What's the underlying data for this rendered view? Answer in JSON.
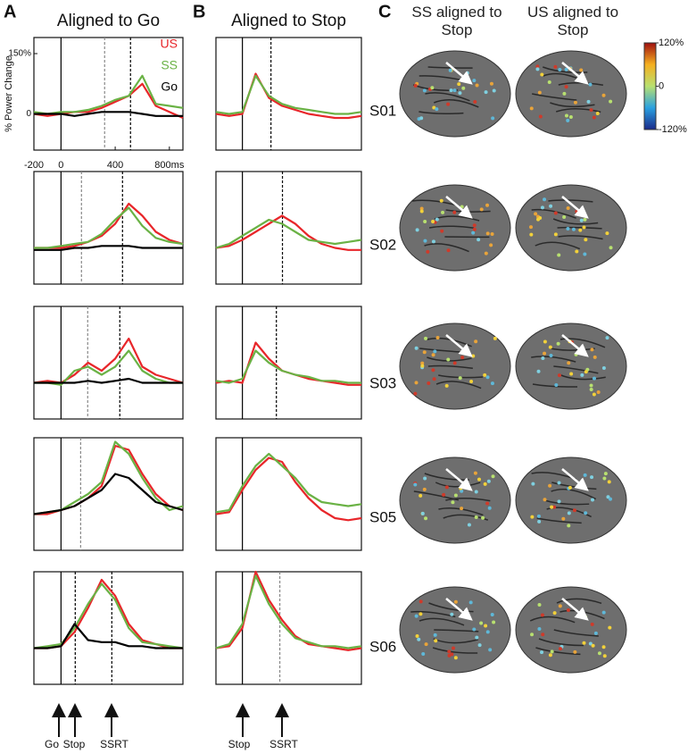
{
  "panel_labels": [
    "A",
    "B",
    "C"
  ],
  "chart_data": [
    {
      "type": "line",
      "title": "Aligned to Go",
      "ylabel": "% Power Change",
      "x": [
        -200,
        -100,
        0,
        100,
        200,
        300,
        400,
        500,
        600,
        700,
        800,
        900
      ],
      "xlim": [
        -200,
        900
      ],
      "ylim": [
        -90,
        190
      ],
      "xticks": [
        -200,
        0,
        400,
        {
          "value": 800,
          "label": "800ms"
        }
      ],
      "yticks": [
        0,
        {
          "value": 150,
          "label": "150%"
        }
      ],
      "vlines": [
        {
          "x": 0,
          "color": "#000"
        },
        {
          "x": 322,
          "color": "#888"
        },
        {
          "x": 513,
          "color": "#000"
        }
      ],
      "series": [
        {
          "name": "US",
          "color": "#e8262a",
          "values": [
            0,
            -5,
            0,
            5,
            5,
            15,
            30,
            45,
            75,
            20,
            5,
            -10
          ]
        },
        {
          "name": "SS",
          "color": "#6ab245",
          "values": [
            5,
            0,
            5,
            5,
            10,
            20,
            35,
            45,
            95,
            25,
            20,
            15
          ]
        },
        {
          "name": "Go",
          "color": "#000000",
          "values": [
            0,
            0,
            0,
            -5,
            0,
            5,
            5,
            5,
            0,
            -5,
            -5,
            -5
          ]
        }
      ]
    },
    {
      "type": "line",
      "x": [
        -200,
        -100,
        0,
        100,
        200,
        300,
        400,
        500,
        600,
        700,
        800,
        900
      ],
      "xlim": [
        -200,
        900
      ],
      "ylim": [
        -90,
        190
      ],
      "vlines": [
        {
          "x": 0,
          "color": "#000"
        },
        {
          "x": 151,
          "color": "#888"
        },
        {
          "x": 454,
          "color": "#000"
        }
      ],
      "series": [
        {
          "color": "#e8262a",
          "values": [
            0,
            0,
            0,
            5,
            15,
            30,
            60,
            110,
            80,
            40,
            20,
            10
          ]
        },
        {
          "color": "#6ab245",
          "values": [
            0,
            0,
            5,
            10,
            15,
            35,
            70,
            100,
            55,
            25,
            15,
            10
          ]
        },
        {
          "color": "#000000",
          "values": [
            -5,
            -5,
            -5,
            0,
            0,
            5,
            5,
            5,
            0,
            0,
            0,
            0
          ]
        }
      ]
    },
    {
      "type": "line",
      "x": [
        -200,
        -100,
        0,
        100,
        200,
        300,
        400,
        500,
        600,
        700,
        800,
        900
      ],
      "xlim": [
        -200,
        900
      ],
      "ylim": [
        -90,
        190
      ],
      "vlines": [
        {
          "x": 0,
          "color": "#000"
        },
        {
          "x": 197,
          "color": "#888"
        },
        {
          "x": 434,
          "color": "#000"
        }
      ],
      "series": [
        {
          "color": "#e8262a",
          "values": [
            0,
            5,
            0,
            20,
            50,
            30,
            60,
            110,
            40,
            20,
            10,
            0
          ]
        },
        {
          "color": "#6ab245",
          "values": [
            0,
            0,
            -5,
            30,
            40,
            20,
            40,
            80,
            30,
            10,
            0,
            0
          ]
        },
        {
          "color": "#000000",
          "values": [
            0,
            0,
            0,
            0,
            5,
            0,
            5,
            10,
            0,
            0,
            0,
            0
          ]
        }
      ]
    },
    {
      "type": "line",
      "x": [
        -200,
        -100,
        0,
        100,
        200,
        300,
        400,
        500,
        600,
        700,
        800,
        900
      ],
      "xlim": [
        -200,
        900
      ],
      "ylim": [
        -90,
        190
      ],
      "vlines": [
        {
          "x": 0,
          "color": "#000"
        },
        {
          "x": 145,
          "color": "#888"
        }
      ],
      "series": [
        {
          "color": "#e8262a",
          "values": [
            0,
            0,
            10,
            20,
            40,
            70,
            170,
            160,
            100,
            50,
            20,
            10
          ]
        },
        {
          "color": "#6ab245",
          "values": [
            0,
            5,
            10,
            30,
            50,
            80,
            180,
            150,
            90,
            40,
            10,
            20
          ]
        },
        {
          "color": "#000000",
          "values": [
            0,
            5,
            10,
            20,
            40,
            60,
            100,
            90,
            60,
            30,
            20,
            10
          ]
        }
      ]
    },
    {
      "type": "line",
      "x": [
        -200,
        -100,
        0,
        100,
        200,
        300,
        400,
        500,
        600,
        700,
        800,
        900
      ],
      "xlim": [
        -200,
        900
      ],
      "ylim": [
        -90,
        190
      ],
      "vlines": [
        {
          "x": 0,
          "color": "#000"
        },
        {
          "x": 105,
          "color": "#000"
        },
        {
          "x": 375,
          "color": "#000"
        }
      ],
      "series": [
        {
          "color": "#e8262a",
          "values": [
            0,
            0,
            5,
            40,
            100,
            170,
            130,
            60,
            20,
            10,
            0,
            0
          ]
        },
        {
          "color": "#6ab245",
          "values": [
            0,
            5,
            10,
            50,
            110,
            160,
            120,
            50,
            15,
            10,
            5,
            0
          ]
        },
        {
          "color": "#000000",
          "values": [
            0,
            0,
            5,
            60,
            20,
            15,
            15,
            5,
            5,
            0,
            0,
            0
          ]
        }
      ]
    },
    {
      "type": "line",
      "title": "Aligned to Stop",
      "x": [
        -200,
        -100,
        0,
        100,
        200,
        300,
        400,
        500,
        600,
        700,
        800,
        900
      ],
      "xlim": [
        -200,
        900
      ],
      "ylim": [
        -90,
        190
      ],
      "vlines": [
        {
          "x": 0,
          "color": "#000"
        },
        {
          "x": 216,
          "color": "#000"
        }
      ],
      "series": [
        {
          "color": "#e8262a",
          "values": [
            0,
            -5,
            0,
            100,
            40,
            20,
            10,
            0,
            -5,
            -10,
            -10,
            -5
          ]
        },
        {
          "color": "#6ab245",
          "values": [
            5,
            0,
            5,
            95,
            45,
            25,
            15,
            10,
            5,
            0,
            0,
            5
          ]
        }
      ]
    },
    {
      "type": "line",
      "x": [
        -200,
        -100,
        0,
        100,
        200,
        300,
        400,
        500,
        600,
        700,
        800,
        900
      ],
      "xlim": [
        -200,
        900
      ],
      "ylim": [
        -90,
        190
      ],
      "vlines": [
        {
          "x": 0,
          "color": "#000"
        },
        {
          "x": 303,
          "color": "#000"
        }
      ],
      "series": [
        {
          "color": "#e8262a",
          "values": [
            0,
            5,
            20,
            40,
            60,
            80,
            60,
            30,
            10,
            0,
            -5,
            -5
          ]
        },
        {
          "color": "#6ab245",
          "values": [
            0,
            10,
            30,
            50,
            70,
            60,
            40,
            20,
            15,
            10,
            15,
            20
          ]
        }
      ]
    },
    {
      "type": "line",
      "x": [
        -200,
        -100,
        0,
        100,
        200,
        300,
        400,
        500,
        600,
        700,
        800,
        900
      ],
      "xlim": [
        -200,
        900
      ],
      "ylim": [
        -90,
        190
      ],
      "vlines": [
        {
          "x": 0,
          "color": "#000"
        },
        {
          "x": 257,
          "color": "#000"
        }
      ],
      "series": [
        {
          "color": "#e8262a",
          "values": [
            0,
            5,
            0,
            100,
            60,
            30,
            20,
            10,
            5,
            0,
            -5,
            -5
          ]
        },
        {
          "color": "#6ab245",
          "values": [
            5,
            0,
            10,
            80,
            50,
            30,
            20,
            15,
            5,
            5,
            0,
            0
          ]
        }
      ]
    },
    {
      "type": "line",
      "x": [
        -200,
        -100,
        0,
        100,
        200,
        300,
        400,
        500,
        600,
        700,
        800,
        900
      ],
      "xlim": [
        -200,
        900
      ],
      "ylim": [
        -90,
        190
      ],
      "vlines": [
        {
          "x": 0,
          "color": "#000"
        }
      ],
      "series": [
        {
          "color": "#e8262a",
          "values": [
            0,
            5,
            60,
            110,
            140,
            130,
            80,
            40,
            10,
            -10,
            -15,
            -10
          ]
        },
        {
          "color": "#6ab245",
          "values": [
            5,
            10,
            70,
            120,
            150,
            120,
            90,
            50,
            30,
            25,
            20,
            25
          ]
        }
      ]
    },
    {
      "type": "line",
      "x": [
        -200,
        -100,
        0,
        100,
        200,
        300,
        400,
        500,
        600,
        700,
        800,
        900
      ],
      "xlim": [
        -200,
        900
      ],
      "ylim": [
        -90,
        190
      ],
      "vlines": [
        {
          "x": 0,
          "color": "#000"
        },
        {
          "x": 283,
          "color": "#888"
        }
      ],
      "series": [
        {
          "color": "#e8262a",
          "values": [
            0,
            5,
            50,
            190,
            120,
            70,
            30,
            10,
            5,
            0,
            -5,
            0
          ]
        },
        {
          "color": "#6ab245",
          "values": [
            0,
            10,
            60,
            180,
            110,
            60,
            25,
            15,
            5,
            5,
            0,
            5
          ]
        }
      ]
    }
  ],
  "event_labels": {
    "A": [
      "Go",
      "Stop",
      "SSRT"
    ],
    "B": [
      "Stop",
      "SSRT"
    ]
  },
  "brain_panel": {
    "col_titles": [
      "SS aligned to Stop",
      "US aligned to Stop"
    ],
    "subjects": [
      "S01",
      "S02",
      "S03",
      "S05",
      "S06"
    ],
    "colorbar": {
      "ylim": [
        -120,
        120
      ],
      "ticks": [
        {
          "value": 120,
          "label": "120%"
        },
        0,
        {
          "value": -120,
          "label": "-120%"
        }
      ]
    }
  }
}
